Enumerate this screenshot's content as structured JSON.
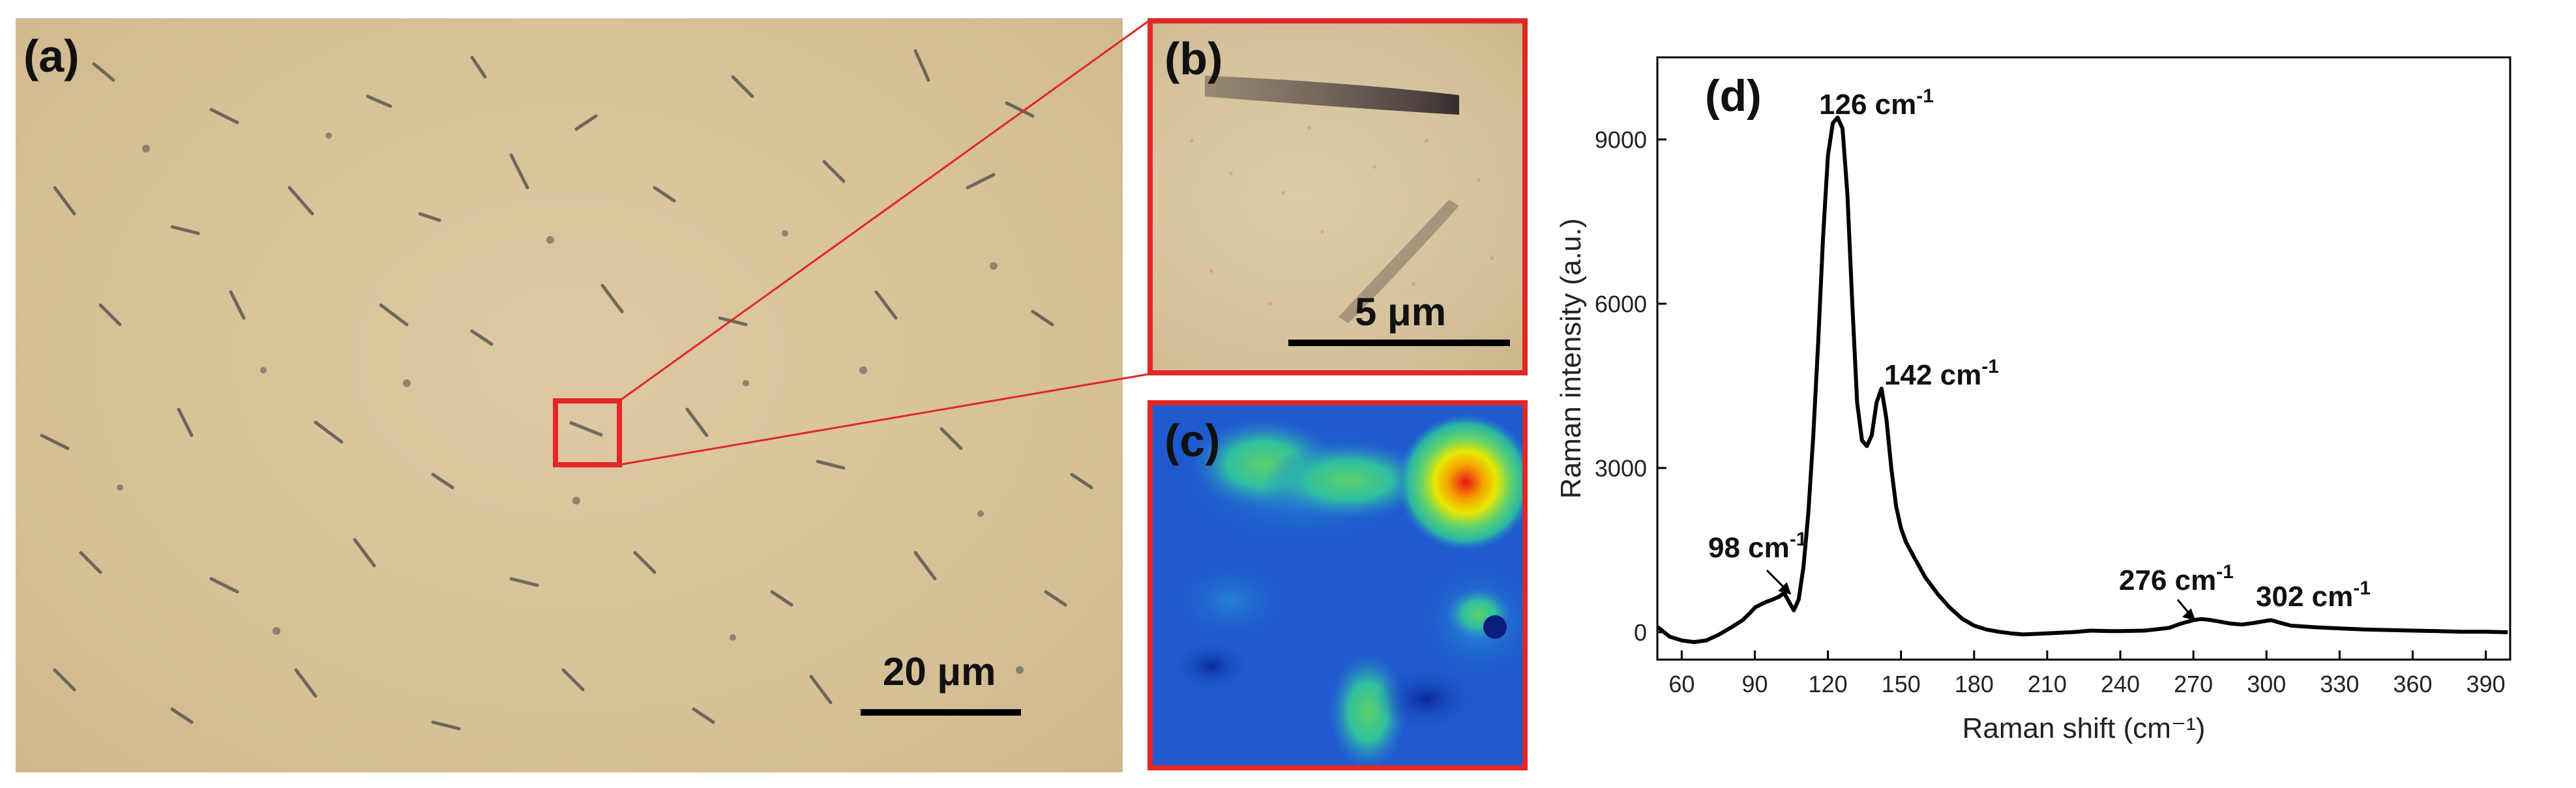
{
  "panel_a": {
    "label": "(a)",
    "scale": "20 μm"
  },
  "panel_b": {
    "label": "(b)",
    "scale": "5 μm"
  },
  "panel_c": {
    "label": "(c)"
  },
  "panel_d": {
    "label": "(d)"
  },
  "colors": {
    "frame": "#e32626",
    "line": "#000000"
  },
  "chart_data": {
    "type": "line",
    "xlabel": "Raman shift (cm⁻¹)",
    "ylabel": "Raman intensity (a.u.)",
    "xlim": [
      50,
      400
    ],
    "ylim": [
      -500,
      10500
    ],
    "x_ticks": [
      60,
      90,
      120,
      150,
      180,
      210,
      240,
      270,
      300,
      330,
      360,
      390
    ],
    "y_ticks": [
      0,
      3000,
      6000,
      9000
    ],
    "grid": false,
    "series": [
      {
        "x": [
          50,
          55,
          60,
          65,
          70,
          75,
          80,
          85,
          88,
          90,
          93,
          95,
          97,
          100,
          102,
          104,
          106,
          108,
          110,
          112,
          114,
          116,
          118,
          120,
          122,
          124,
          126,
          128,
          130,
          132,
          134,
          136,
          138,
          140,
          142,
          144,
          146,
          148,
          150,
          152,
          155,
          160,
          165,
          170,
          175,
          180,
          185,
          190,
          195,
          200,
          210,
          220,
          228,
          235,
          240,
          250,
          260,
          265,
          270,
          273,
          276,
          280,
          285,
          290,
          295,
          300,
          302,
          305,
          310,
          320,
          330,
          340,
          350,
          360,
          370,
          380,
          390,
          399
        ],
        "y": [
          100,
          -80,
          -150,
          -180,
          -150,
          -50,
          80,
          220,
          350,
          450,
          520,
          560,
          590,
          650,
          720,
          560,
          400,
          600,
          1200,
          2200,
          3600,
          5300,
          7200,
          8700,
          9300,
          9400,
          9200,
          8000,
          6000,
          4200,
          3500,
          3400,
          3600,
          4200,
          4450,
          3900,
          3000,
          2300,
          1900,
          1650,
          1400,
          1000,
          700,
          450,
          250,
          120,
          50,
          10,
          -20,
          -40,
          -20,
          0,
          30,
          20,
          20,
          30,
          80,
          160,
          220,
          240,
          230,
          200,
          160,
          140,
          170,
          210,
          220,
          180,
          120,
          90,
          70,
          50,
          40,
          30,
          20,
          10,
          10,
          0
        ]
      }
    ],
    "annotations": [
      "98 cm-1",
      "126 cm-1",
      "142 cm-1",
      "276 cm-1",
      "302 cm-1"
    ]
  }
}
